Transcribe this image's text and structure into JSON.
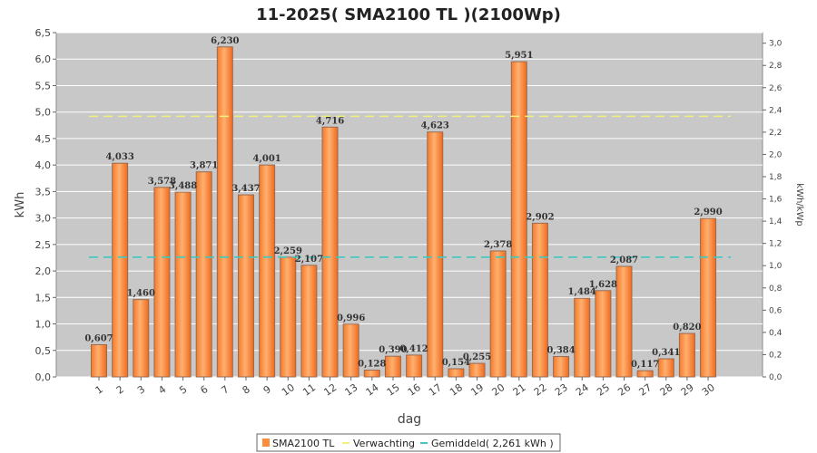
{
  "chart_data": {
    "type": "bar",
    "title": "11-2025( SMA2100 TL )(2100Wp)",
    "xlabel": "dag",
    "ylabel": "kWh",
    "ylabel_right": "kWh/kWp",
    "ylim": [
      0,
      6.5
    ],
    "yticks": [
      "0,0",
      "0,5",
      "1,0",
      "1,5",
      "2,0",
      "2,5",
      "3,0",
      "3,5",
      "4,0",
      "4,5",
      "5,0",
      "5,5",
      "6,0",
      "6,5"
    ],
    "ylim_right": [
      0,
      3.095
    ],
    "yticks_right": [
      "0,0",
      "0,2",
      "0,4",
      "0,6",
      "0,8",
      "1,0",
      "1,2",
      "1,4",
      "1,6",
      "1,8",
      "2,0",
      "2,2",
      "2,4",
      "2,6",
      "2,8",
      "3,0"
    ],
    "categories": [
      "1",
      "2",
      "3",
      "4",
      "5",
      "6",
      "7",
      "8",
      "9",
      "10",
      "11",
      "12",
      "13",
      "14",
      "15",
      "16",
      "17",
      "18",
      "19",
      "20",
      "21",
      "22",
      "23",
      "24",
      "25",
      "26",
      "27",
      "28",
      "29",
      "30"
    ],
    "series": [
      {
        "name": "SMA2100 TL",
        "values": [
          0.607,
          4.033,
          1.46,
          3.578,
          3.488,
          3.871,
          6.23,
          3.437,
          4.001,
          2.259,
          2.107,
          4.716,
          0.996,
          0.128,
          0.39,
          0.412,
          4.623,
          0.154,
          0.255,
          2.378,
          5.951,
          2.902,
          0.384,
          1.484,
          1.628,
          2.087,
          0.117,
          0.341,
          0.82,
          2.99
        ],
        "labels": [
          "0,607",
          "4,033",
          "1,460",
          "3,578",
          "3,488",
          "3,871",
          "6,230",
          "3,437",
          "4,001",
          "2,259",
          "2,107",
          "4,716",
          "0,996",
          "0,128",
          "0,390",
          "0,412",
          "4,623",
          "0,154",
          "0,255",
          "2,378",
          "5,951",
          "2,902",
          "0,384",
          "1,484",
          "1,628",
          "2,087",
          "0,117",
          "0,341",
          "0,820",
          "2,990"
        ],
        "color": "#ff8c3a"
      }
    ],
    "reference_lines": [
      {
        "name": "Verwachting",
        "value": 4.92,
        "color": "#f0f07a"
      },
      {
        "name": "Gemiddeld( 2,261 kWh )",
        "value": 2.261,
        "color": "#40c8c0"
      }
    ],
    "legend": {
      "position": "bottom",
      "items": [
        "SMA2100 TL",
        "Verwachting",
        "Gemiddeld( 2,261 kWh )"
      ]
    },
    "grid": true
  }
}
